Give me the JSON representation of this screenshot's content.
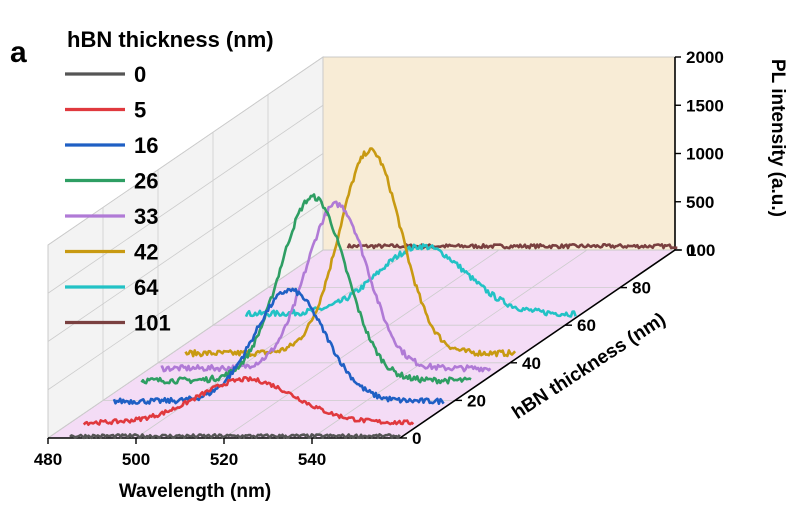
{
  "figure": {
    "panel_label": "a"
  },
  "chart_data": {
    "type": "line",
    "title": "",
    "legend_title": "hBN thickness (nm)",
    "legend_position": "top-left",
    "xlabel": "Wavelength (nm)",
    "ylabel": "hBN thickness (nm)",
    "zlabel": "PL intensity (a.u.)",
    "xlim": [
      480,
      560
    ],
    "ylim": [
      0,
      100
    ],
    "zlim": [
      0,
      2000
    ],
    "x_ticks": [
      480,
      500,
      520,
      540
    ],
    "y_ticks": [
      0,
      20,
      40,
      60,
      80,
      100
    ],
    "z_ticks": [
      0,
      500,
      1000,
      1500,
      2000
    ],
    "grid": true,
    "series": [
      {
        "name": "0",
        "thickness": 0,
        "color": "#555555",
        "x_start": 485,
        "peak_x": 540,
        "peak": 0,
        "width": 10,
        "baseline": 20,
        "noise": 18
      },
      {
        "name": "5",
        "thickness": 5,
        "color": "#e0393e",
        "x_start": 485,
        "peak_x": 522,
        "peak": 450,
        "width": 11,
        "baseline": 60,
        "noise": 22
      },
      {
        "name": "16",
        "thickness": 16,
        "color": "#1f5fc4",
        "x_start": 485,
        "peak_x": 525,
        "peak": 1150,
        "width": 8,
        "baseline": 70,
        "noise": 28
      },
      {
        "name": "26",
        "thickness": 26,
        "color": "#2e9e63",
        "x_start": 485,
        "peak_x": 524,
        "peak": 1900,
        "width": 7.5,
        "baseline": 90,
        "noise": 30
      },
      {
        "name": "33",
        "thickness": 33,
        "color": "#b07ad6",
        "x_start": 485,
        "peak_x": 525,
        "peak": 1700,
        "width": 7,
        "baseline": 80,
        "noise": 30
      },
      {
        "name": "42",
        "thickness": 42,
        "color": "#c89a12",
        "x_start": 485,
        "peak_x": 527,
        "peak": 2100,
        "width": 7,
        "baseline": 60,
        "noise": 30
      },
      {
        "name": "64",
        "thickness": 64,
        "color": "#22c2c5",
        "x_start": 485,
        "peak_x": 525,
        "peak": 700,
        "width": 10,
        "baseline": 40,
        "noise": 30
      },
      {
        "name": "101",
        "thickness": 101,
        "color": "#7a4040",
        "x_start": 485,
        "peak_x": 540,
        "peak": 0,
        "width": 10,
        "baseline": 20,
        "noise": 20
      }
    ]
  },
  "style": {
    "floor_color": "#f4dcf6",
    "back_wall_color": "#f8ecd6",
    "side_wall_color": "#f3f3f3",
    "grid_color": "#cccccc"
  }
}
